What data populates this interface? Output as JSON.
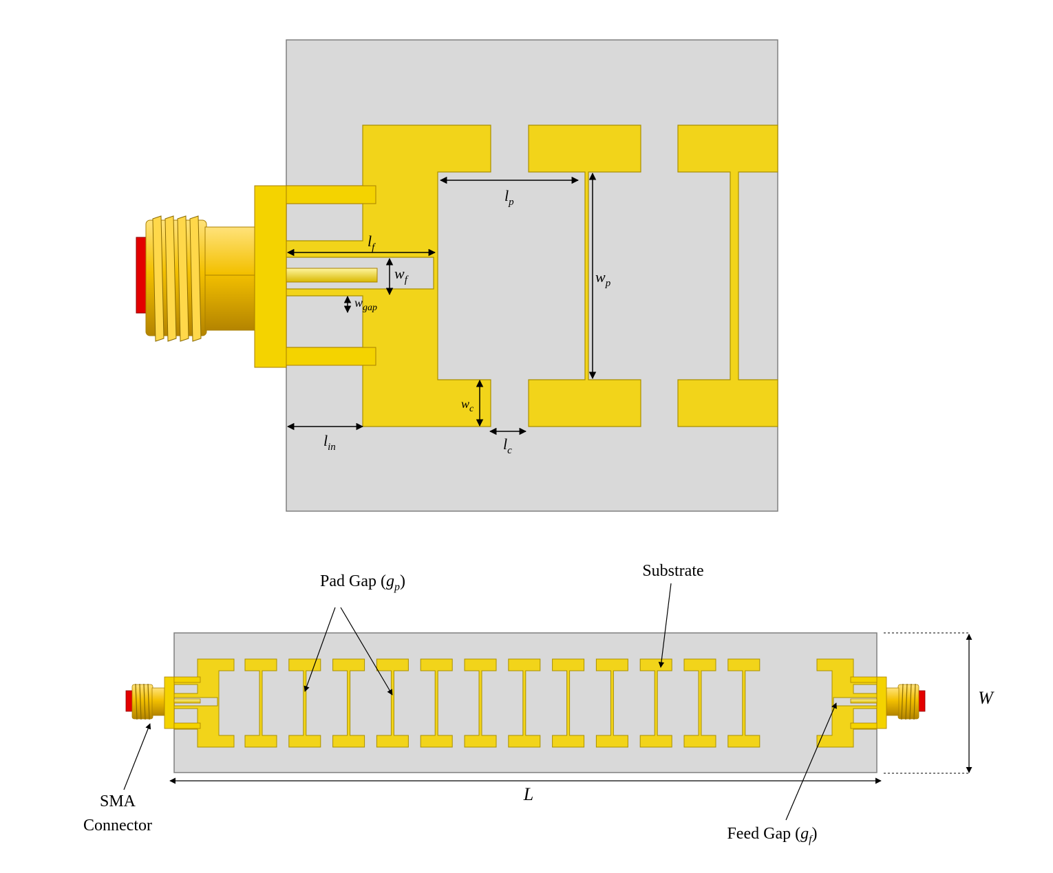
{
  "colors": {
    "substrate": "#d9d9d9",
    "substrate_edge": "#7f7f7f",
    "copper": "#f2d41a",
    "copper_edge": "#a98f00",
    "connector_gold": "#f3c000",
    "connector_dark": "#a87f00",
    "connector_pin": "#e30000",
    "dimension_line": "#000000"
  },
  "detail_view": {
    "dimensions": {
      "lp": {
        "base": "l",
        "sub": "p"
      },
      "lf": {
        "base": "l",
        "sub": "f"
      },
      "wf": {
        "base": "w",
        "sub": "f"
      },
      "wgap": {
        "base": "w",
        "sub": "gap"
      },
      "wp": {
        "base": "w",
        "sub": "p"
      },
      "wc": {
        "base": "w",
        "sub": "c"
      },
      "lin": {
        "base": "l",
        "sub": "in"
      },
      "lc": {
        "base": "l",
        "sub": "c"
      }
    }
  },
  "overview": {
    "pad_count": 12,
    "annotations": {
      "pad_gap": {
        "text": "Pad Gap (",
        "sym": "g",
        "sub": "p",
        "close": ")"
      },
      "substrate": {
        "text": "Substrate"
      },
      "sma_line1": "SMA",
      "sma_line2": "Connector",
      "feed_gap": {
        "text": "Feed Gap (",
        "sym": "g",
        "sub": "f",
        "close": ")"
      }
    },
    "dimensions": {
      "length": "L",
      "width": "W"
    }
  }
}
